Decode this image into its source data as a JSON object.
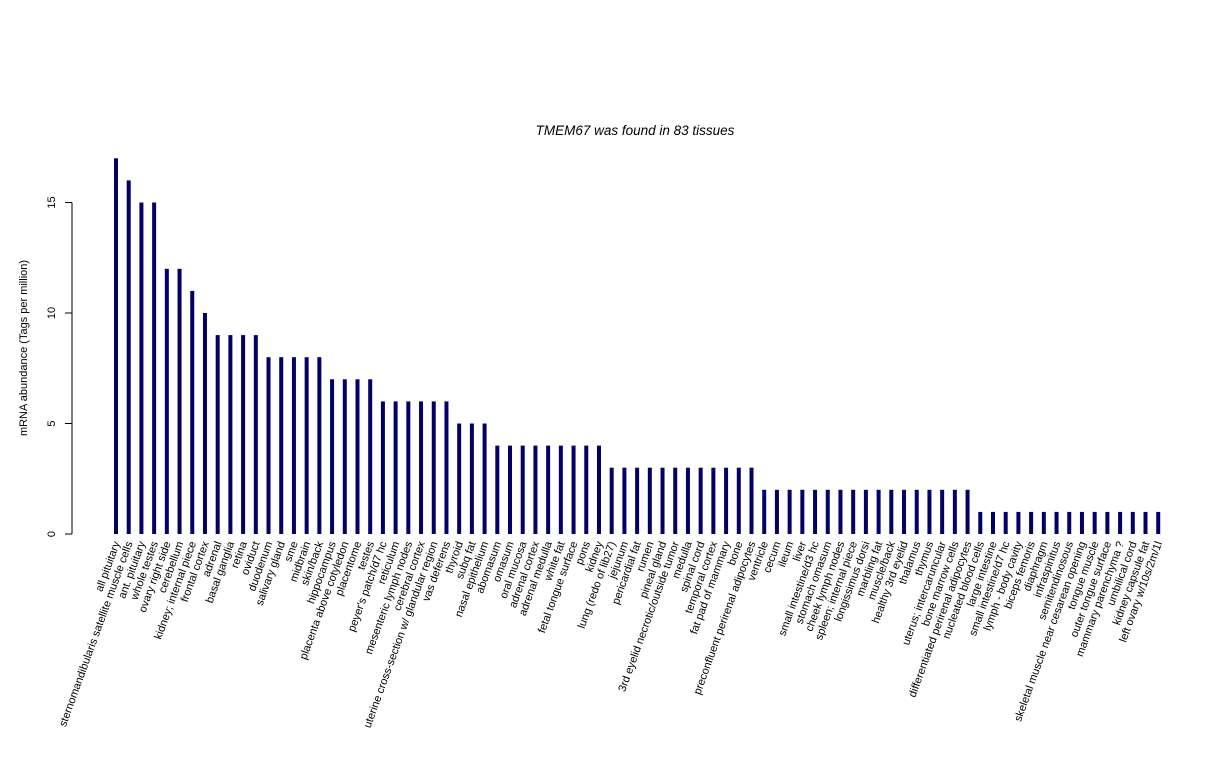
{
  "chart_data": {
    "type": "bar",
    "title": "TMEM67  was found in  83  tissues",
    "ylabel": "mRNA abundance (Tags per million)",
    "xlabel": "",
    "ylim": [
      0,
      17
    ],
    "yticks": [
      0,
      5,
      10,
      15
    ],
    "bar_color": "#000066",
    "categories": [
      "all pituitary",
      "sternomandibularis satellite muscle cells",
      "ant. pituitary",
      "whole testes",
      "ovary right side",
      "cerebellum",
      "kidney; internal piece",
      "frontal cortex",
      "adrenal",
      "basal ganglia",
      "retina",
      "oviduct",
      "duodenum",
      "salivary gland",
      "sme",
      "midbrain",
      "skin/back",
      "hippocampus",
      "placenta above cotyledon",
      "placentome",
      "testes",
      "peyer's patch/d7 hc",
      "reticulum",
      "mesenteric lymph nodes",
      "cerebral cortex",
      "uterine cross-section w/ glandular region",
      "vas deferens",
      "thyroid",
      "subq fat",
      "nasal epithelium",
      "abomasum",
      "omasum",
      "oral mucosa",
      "adrenal cortex",
      "adrenal medulla",
      "white fat",
      "fetal tongue surface",
      "pons",
      "kidney",
      "lung (redo of lib27)",
      "jejunum",
      "pericardial fat",
      "rumen",
      "pineal gland",
      "3rd eyelid necrotic/outside tumor",
      "medulla",
      "spinal cord",
      "temporal cortex",
      "fat pad of mammary",
      "bone",
      "preconfluent perirenal adipocytes",
      "ventricle",
      "cecum",
      "ileum",
      "liver",
      "small intestine/d3 hc",
      "stomach omasum",
      "cheek lymph nodes",
      "spleen; internal piece",
      "longissimus dorsi",
      "marbling fat",
      "muscle/back",
      "healthy 3rd eyelid",
      "thalamus",
      "thymus",
      "uterus; intercaruncular",
      "bone marrow cells",
      "differentiated perirenal adipocytes",
      "nucleated blood cells",
      "large intestine",
      "small intestine/d7 hc",
      "lymph - body cavity",
      "biceps femoris",
      "diaphragm",
      "infraspinitus",
      "semitendinosous",
      "skeletal muscle near cesarean opening",
      "tongue muscle",
      "outer tongue surface",
      "mammary parenchyma ?",
      "umbilical cord",
      "kidney capsule fat",
      "left ovary w/10s/2m/1l"
    ],
    "values": [
      17,
      16,
      15,
      15,
      12,
      12,
      11,
      10,
      9,
      9,
      9,
      9,
      8,
      8,
      8,
      8,
      8,
      7,
      7,
      7,
      7,
      6,
      6,
      6,
      6,
      6,
      6,
      5,
      5,
      5,
      4,
      4,
      4,
      4,
      4,
      4,
      4,
      4,
      4,
      3,
      3,
      3,
      3,
      3,
      3,
      3,
      3,
      3,
      3,
      3,
      3,
      2,
      2,
      2,
      2,
      2,
      2,
      2,
      2,
      2,
      2,
      2,
      2,
      2,
      2,
      2,
      2,
      2,
      1,
      1,
      1,
      1,
      1,
      1,
      1,
      1,
      1,
      1,
      1,
      1,
      1,
      1,
      1
    ]
  }
}
